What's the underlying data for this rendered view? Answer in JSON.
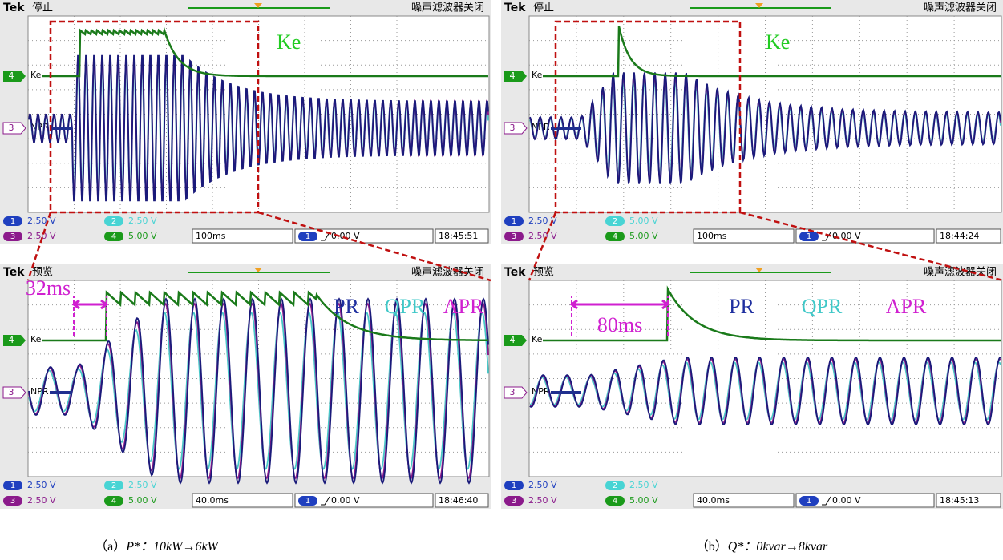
{
  "panels": [
    {
      "brand": "Tek",
      "status": "停止",
      "filter": "噪声滤波器关闭",
      "ch4": {
        "num": "4",
        "label": "Ke"
      },
      "ch3": {
        "num": "3",
        "label": "NPR"
      },
      "readings": [
        {
          "ch": "1",
          "value": "2.50 V"
        },
        {
          "ch": "3",
          "value": "2.50 V"
        },
        {
          "ch": "2",
          "value": "2.50 V"
        },
        {
          "ch": "4",
          "value": "5.00 V"
        }
      ],
      "timebase": "100ms",
      "trigger_ch": "1",
      "trigger": "0.00 V",
      "clock": "18:45:51",
      "annotations": [
        "Ke"
      ]
    },
    {
      "brand": "Tek",
      "status": "停止",
      "filter": "噪声滤波器关闭",
      "ch4": {
        "num": "4",
        "label": "Ke"
      },
      "ch3": {
        "num": "3",
        "label": "NPR"
      },
      "readings": [
        {
          "ch": "1",
          "value": "2.50 V"
        },
        {
          "ch": "3",
          "value": "2.50 V"
        },
        {
          "ch": "2",
          "value": "5.00 V"
        },
        {
          "ch": "4",
          "value": "5.00 V"
        }
      ],
      "timebase": "100ms",
      "trigger_ch": "1",
      "trigger": "0.00 V",
      "clock": "18:44:24",
      "annotations": [
        "Ke"
      ]
    },
    {
      "brand": "Tek",
      "status": "预览",
      "filter": "噪声滤波器关闭",
      "ch4": {
        "num": "4",
        "label": "Ke"
      },
      "ch3": {
        "num": "3",
        "label": "NPR"
      },
      "readings": [
        {
          "ch": "1",
          "value": "2.50 V"
        },
        {
          "ch": "3",
          "value": "2.50 V"
        },
        {
          "ch": "2",
          "value": "2.50 V"
        },
        {
          "ch": "4",
          "value": "5.00 V"
        }
      ],
      "timebase": "40.0ms",
      "trigger_ch": "1",
      "trigger": "0.00 V",
      "clock": "18:46:40",
      "annotations": [
        "32ms",
        "PR",
        "QPR",
        "APR"
      ]
    },
    {
      "brand": "Tek",
      "status": "预览",
      "filter": "噪声滤波器关闭",
      "ch4": {
        "num": "4",
        "label": "Ke"
      },
      "ch3": {
        "num": "3",
        "label": "NPR"
      },
      "readings": [
        {
          "ch": "1",
          "value": "2.50 V"
        },
        {
          "ch": "3",
          "value": "2.50 V"
        },
        {
          "ch": "2",
          "value": "2.50 V"
        },
        {
          "ch": "4",
          "value": "5.00 V"
        }
      ],
      "timebase": "40.0ms",
      "trigger_ch": "1",
      "trigger": "0.00 V",
      "clock": "18:45:13",
      "annotations": [
        "80ms",
        "PR",
        "QPR",
        "APR"
      ]
    }
  ],
  "captions": [
    {
      "label": "（a）",
      "formula": "P*：10kW→6kW"
    },
    {
      "label": "（b）",
      "formula": "Q*：0kvar→8kvar"
    }
  ]
}
